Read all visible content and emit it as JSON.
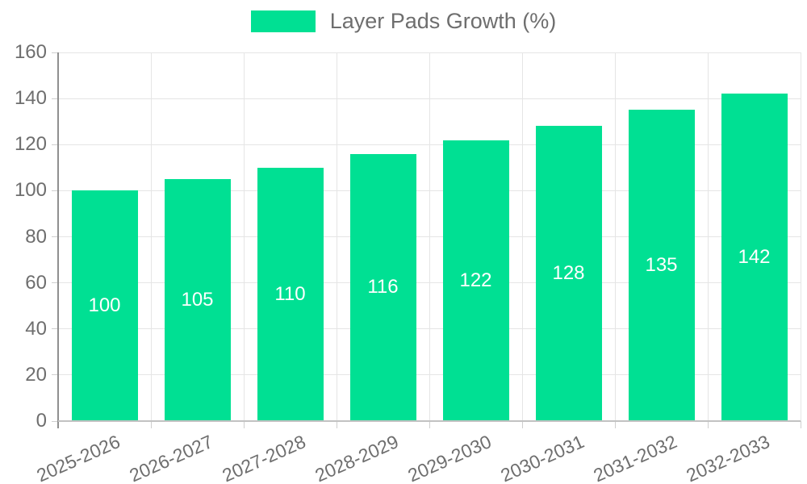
{
  "chart_data": {
    "type": "bar",
    "title": "",
    "legend": {
      "label": "Layer Pads Growth (%)",
      "position": "top",
      "marker": "rectangle"
    },
    "categories": [
      "2025-2026",
      "2026-2027",
      "2027-2028",
      "2028-2029",
      "2029-2030",
      "2030-2031",
      "2031-2032",
      "2032-2033"
    ],
    "series": [
      {
        "name": "Layer Pads Growth (%)",
        "values": [
          100,
          105,
          110,
          116,
          122,
          128,
          135,
          142
        ]
      }
    ],
    "value_labels_shown": true,
    "xlabel": "",
    "ylabel": "",
    "ylim": [
      0,
      160
    ],
    "ytick_step": 20,
    "yticks": [
      0,
      20,
      40,
      60,
      80,
      100,
      120,
      140,
      160
    ],
    "grid": true,
    "x_label_rotation_deg": -24,
    "colors": {
      "bar": "#00E093",
      "value_label": "#ffffff",
      "axis_text": "#6e6e6e",
      "legend_text": "#6e6e6e",
      "grid": "#e5e5e5",
      "y_axis_line": "#8f8f8f",
      "x_axis_line": "#c2c2c2",
      "tick_mark": "#cfcfcf",
      "background": "#ffffff"
    }
  }
}
